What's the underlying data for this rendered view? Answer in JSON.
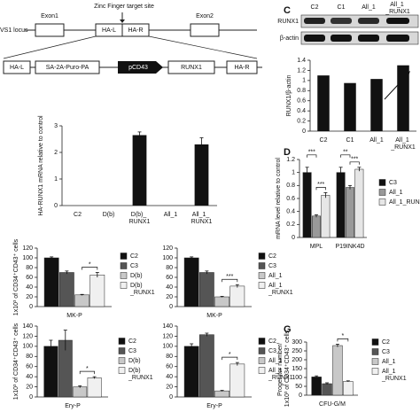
{
  "diagram": {
    "locus": "VS1 locus",
    "exon1": "Exon1",
    "exon2": "Exon2",
    "target": "Zinc Finger target site",
    "ha_l": "HA-L",
    "ha_r": "HA-R",
    "construct": [
      "HA-L",
      "SA-2A-Puro-PA",
      "pCD43",
      "RUNX1",
      "HA-R"
    ]
  },
  "chart_data": [
    {
      "type": "bar",
      "ylabel": "HA-RUNX1 mRNA relative to control",
      "categories": [
        "C2",
        "D(b)",
        "D(b)_ RUNX1",
        "All_1",
        "All_1_ RUNX1"
      ],
      "values": [
        0,
        0,
        2.65,
        0,
        2.3
      ],
      "errors": [
        null,
        null,
        0.12,
        null,
        0.25
      ],
      "color": "#111111",
      "ylim": [
        0,
        3
      ],
      "yticks": [
        0,
        1,
        2,
        3
      ]
    },
    {
      "type": "bar",
      "panel": "C",
      "blot": {
        "lanes": [
          "C2",
          "C1",
          "All_1",
          "All_1 _RUNX1"
        ],
        "rows": [
          "RUNX1",
          "β-actin"
        ]
      },
      "ylabel": "RUNX1/β-actin",
      "categories": [
        "C2",
        "C1",
        "All_1",
        "All_1 _RUNX1"
      ],
      "values": [
        1.1,
        0.95,
        1.03,
        1.3
      ],
      "color": "#111111",
      "ylim": [
        0,
        1.4
      ],
      "yticks": [
        0,
        0.2,
        0.4,
        0.6,
        0.8,
        1,
        1.2,
        1.4
      ]
    },
    {
      "type": "grouped_bar",
      "panel": "D",
      "ylabel": "mRNA level relative to control",
      "categories": [
        "MPL",
        "P19INK4D"
      ],
      "series": [
        {
          "name": "C3",
          "color": "#111111",
          "values": [
            1.0,
            1.0
          ],
          "errors": [
            0.08,
            0.08
          ]
        },
        {
          "name": "All_1",
          "color": "#999999",
          "values": [
            0.33,
            0.77
          ],
          "errors": [
            0.02,
            0.03
          ]
        },
        {
          "name": "All_1_RUNX1",
          "color": "#e6e6e6",
          "values": [
            0.65,
            1.05
          ],
          "errors": [
            0.04,
            0.03
          ]
        }
      ],
      "ylim": [
        0,
        1.2
      ],
      "yticks": [
        0,
        0.2,
        0.4,
        0.6,
        0.8,
        1,
        1.2
      ],
      "annotations": [
        "***",
        "***",
        "**",
        "***"
      ]
    },
    {
      "type": "grouped_bar",
      "ylabel": "1x10³ of CD34⁺CD43⁺ cells",
      "categories": [
        "MK-P"
      ],
      "series": [
        {
          "name": "C2",
          "color": "#111111",
          "values": [
            100
          ],
          "errors": [
            2
          ]
        },
        {
          "name": "C3",
          "color": "#555555",
          "values": [
            70
          ],
          "errors": [
            3
          ]
        },
        {
          "name": "D(b)",
          "color": "#c8c8c8",
          "values": [
            24
          ],
          "errors": [
            1
          ]
        },
        {
          "name": "D(b) _RUNX1",
          "color": "#f0f0f0",
          "values": [
            65
          ],
          "errors": [
            5
          ]
        }
      ],
      "ylim": [
        0,
        120
      ],
      "yticks": [
        0,
        20,
        40,
        60,
        80,
        100,
        120
      ],
      "annotations": [
        "*"
      ]
    },
    {
      "type": "grouped_bar",
      "categories": [
        "MK-P"
      ],
      "series": [
        {
          "name": "C2",
          "color": "#111111",
          "values": [
            100
          ],
          "errors": [
            2
          ]
        },
        {
          "name": "C3",
          "color": "#555555",
          "values": [
            70
          ],
          "errors": [
            3
          ]
        },
        {
          "name": "All_1",
          "color": "#c8c8c8",
          "values": [
            20
          ],
          "errors": [
            1
          ]
        },
        {
          "name": "All_1 _RUNX1",
          "color": "#f0f0f0",
          "values": [
            42
          ],
          "errors": [
            3
          ]
        }
      ],
      "ylim": [
        0,
        120
      ],
      "yticks": [
        0,
        20,
        40,
        60,
        80,
        100,
        120
      ],
      "annotations": [
        "***"
      ]
    },
    {
      "type": "grouped_bar",
      "ylabel": "1x10³ of CD34⁺CD43⁺ cells",
      "categories": [
        "Ery-P"
      ],
      "series": [
        {
          "name": "C2",
          "color": "#111111",
          "values": [
            100
          ],
          "errors": [
            12
          ]
        },
        {
          "name": "C3",
          "color": "#555555",
          "values": [
            112
          ],
          "errors": [
            20
          ]
        },
        {
          "name": "D(b)",
          "color": "#c8c8c8",
          "values": [
            20
          ],
          "errors": [
            2
          ]
        },
        {
          "name": "D(b) _RUNX1",
          "color": "#f0f0f0",
          "values": [
            38
          ],
          "errors": [
            2
          ]
        }
      ],
      "ylim": [
        0,
        140
      ],
      "yticks": [
        0,
        20,
        40,
        60,
        80,
        100,
        120,
        140
      ],
      "annotations": [
        "*"
      ]
    },
    {
      "type": "grouped_bar",
      "categories": [
        "Ery-P"
      ],
      "series": [
        {
          "name": "C2",
          "color": "#111111",
          "values": [
            100
          ],
          "errors": [
            5
          ]
        },
        {
          "name": "C3",
          "color": "#555555",
          "values": [
            123
          ],
          "errors": [
            3
          ]
        },
        {
          "name": "All_1",
          "color": "#c8c8c8",
          "values": [
            12
          ],
          "errors": [
            1
          ]
        },
        {
          "name": "All_1 _RUNX1",
          "color": "#f0f0f0",
          "values": [
            65
          ],
          "errors": [
            3
          ]
        }
      ],
      "ylim": [
        0,
        140
      ],
      "yticks": [
        0,
        20,
        40,
        60,
        80,
        100,
        120,
        140
      ],
      "annotations": [
        "*"
      ]
    },
    {
      "type": "grouped_bar",
      "panel": "G",
      "ylabel": "Progenitor number/ 1x10³ of CD34⁺CD43⁺ cells",
      "categories": [
        "CFU-G/M"
      ],
      "series": [
        {
          "name": "C2",
          "color": "#111111",
          "values": [
            103
          ],
          "errors": [
            6
          ]
        },
        {
          "name": "C3",
          "color": "#555555",
          "values": [
            65
          ],
          "errors": [
            5
          ]
        },
        {
          "name": "All_1",
          "color": "#c8c8c8",
          "values": [
            280
          ],
          "errors": [
            8
          ]
        },
        {
          "name": "All_1 _RUNX1",
          "color": "#f0f0f0",
          "values": [
            78
          ],
          "errors": [
            3
          ]
        }
      ],
      "ylim": [
        0,
        300
      ],
      "yticks": [
        0,
        50,
        100,
        150,
        200,
        250,
        300
      ],
      "annotations": [
        "*"
      ]
    }
  ]
}
